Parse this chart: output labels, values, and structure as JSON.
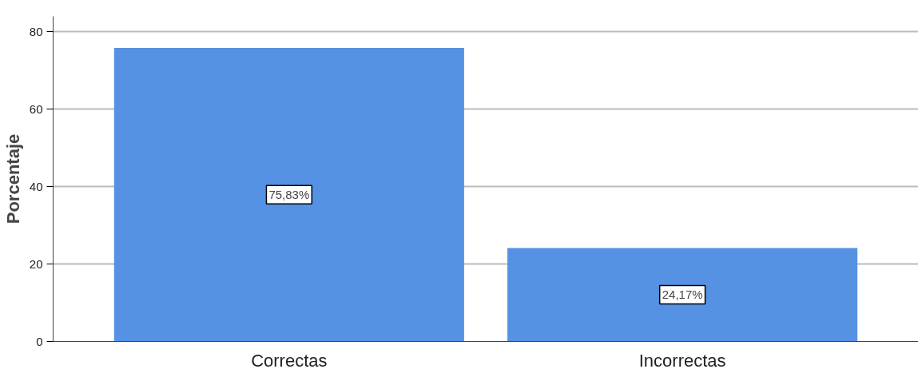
{
  "chart_data": {
    "type": "bar",
    "ylabel": "Porcentaje",
    "categories": [
      "Correctas",
      "Incorrectas"
    ],
    "values": [
      75.83,
      24.17
    ],
    "value_labels": [
      "75,83%",
      "24,17%"
    ],
    "color": "#5592e3",
    "ylim": [
      0,
      84
    ],
    "yticks": [
      0,
      20,
      40,
      60,
      80
    ],
    "grid": "y"
  }
}
